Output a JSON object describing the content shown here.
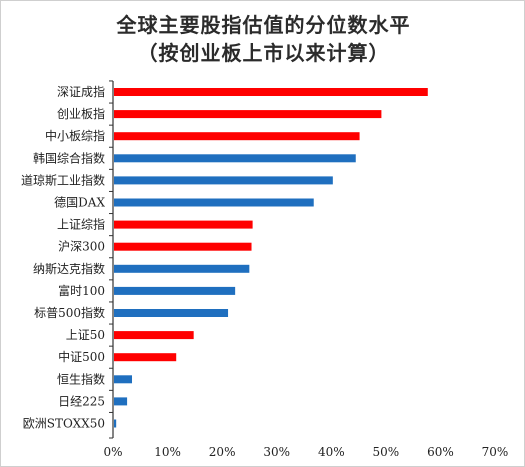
{
  "chart_data": {
    "type": "bar",
    "orientation": "horizontal",
    "title": "全球主要股指估值的分位数水平",
    "subtitle": "（按创业板上市以来计算）",
    "categories": [
      "深证成指",
      "创业板指",
      "中小板综指",
      "韩国综合指数",
      "道琼斯工业指数",
      "德国DAX",
      "上证综指",
      "沪深300",
      "纳斯达克指数",
      "富时100",
      "标普500指数",
      "上证50",
      "中证500",
      "恒生指数",
      "日经225",
      "欧洲STOXX50"
    ],
    "values": [
      0.575,
      0.49,
      0.45,
      0.443,
      0.401,
      0.366,
      0.254,
      0.252,
      0.248,
      0.222,
      0.209,
      0.146,
      0.114,
      0.033,
      0.024,
      0.004
    ],
    "bar_colors": [
      "#ff0000",
      "#ff0000",
      "#ff0000",
      "#1f6fbf",
      "#1f6fbf",
      "#1f6fbf",
      "#ff0000",
      "#ff0000",
      "#1f6fbf",
      "#1f6fbf",
      "#1f6fbf",
      "#ff0000",
      "#ff0000",
      "#1f6fbf",
      "#1f6fbf",
      "#1f6fbf"
    ],
    "xlim": [
      0,
      0.7
    ],
    "x_ticks": [
      "0%",
      "10%",
      "20%",
      "30%",
      "40%",
      "50%",
      "60%",
      "70%"
    ],
    "grid": false,
    "legend": false
  }
}
